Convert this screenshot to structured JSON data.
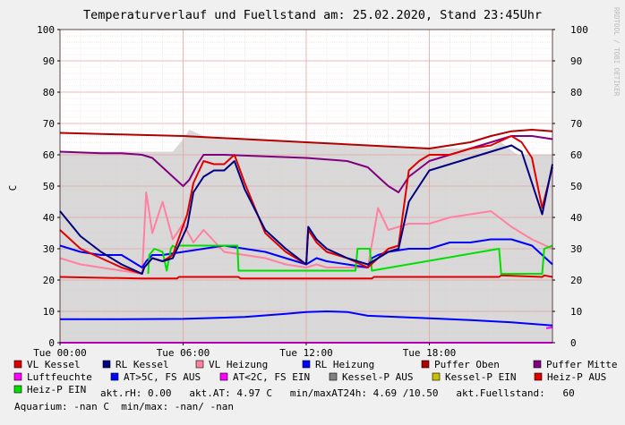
{
  "chart_data": {
    "type": "line",
    "title": "Temperaturverlauf und Fuellstand am: 25.02.2020, Stand 23:45Uhr",
    "ylabel": "C",
    "watermark": "RRDTOOL / TOBI OETIKER",
    "ylim": [
      0,
      100
    ],
    "yticks": [
      "0",
      "10",
      "20",
      "30",
      "40",
      "50",
      "60",
      "70",
      "80",
      "90",
      "100"
    ],
    "xlim": [
      0,
      24
    ],
    "xticks": [
      {
        "label": "Tue 00:00",
        "hour": 0
      },
      {
        "label": "Tue 06:00",
        "hour": 6
      },
      {
        "label": "Tue 12:00",
        "hour": 12
      },
      {
        "label": "Tue 18:00",
        "hour": 18
      }
    ],
    "grid": true,
    "legend_position": "bottom",
    "fuellstand_area": {
      "color": "#d8d8d8",
      "x": [
        0,
        5.5,
        6,
        6.3,
        7,
        8,
        9,
        12,
        14,
        16,
        17,
        18,
        21,
        21.5,
        22.3,
        23,
        24
      ],
      "values": [
        61,
        61,
        65,
        68,
        66,
        65,
        65,
        64,
        63,
        63,
        62,
        62,
        62,
        64,
        60,
        60,
        60
      ]
    },
    "series": [
      {
        "name": "VL Kessel",
        "color": "#e00000",
        "x": [
          0,
          1,
          2,
          3,
          4,
          4.1,
          4.5,
          5,
          5.5,
          6.2,
          6.5,
          7,
          7.5,
          8,
          8.5,
          9,
          10,
          11,
          12,
          12.1,
          12.5,
          13,
          14,
          15,
          15.5,
          16,
          16.5,
          17,
          17.5,
          18,
          19,
          20,
          21,
          22,
          22.5,
          23,
          23.5,
          24
        ],
        "values": [
          36,
          30,
          27,
          24,
          22,
          24,
          27,
          26,
          28,
          41,
          51,
          58,
          57,
          57,
          60,
          51,
          35,
          29,
          25,
          36,
          32,
          29,
          27,
          24,
          27,
          30,
          31,
          55,
          58,
          60,
          60,
          62,
          63,
          66,
          64,
          59,
          43,
          56
        ]
      },
      {
        "name": "RL Kessel",
        "color": "#000080",
        "x": [
          0,
          1,
          2,
          3,
          4,
          4.1,
          4.5,
          5,
          5.5,
          6.2,
          6.5,
          7,
          7.5,
          8,
          8.5,
          9,
          10,
          11,
          12,
          12.1,
          12.5,
          13,
          14,
          15,
          15.5,
          16,
          16.5,
          17,
          17.5,
          18,
          19,
          20,
          21,
          22,
          22.5,
          23,
          23.5,
          24
        ],
        "values": [
          42,
          34,
          29,
          25,
          22,
          24,
          27,
          26,
          27,
          37,
          48,
          53,
          55,
          55,
          58,
          49,
          36,
          30,
          25,
          37,
          33,
          30,
          27,
          25,
          27,
          29,
          30,
          45,
          50,
          55,
          57,
          59,
          61,
          63,
          61,
          51,
          41,
          57
        ]
      },
      {
        "name": "VL Heizung",
        "color": "#ff80a0",
        "x": [
          0,
          1,
          2,
          3,
          4,
          4.2,
          4.5,
          5,
          5.5,
          6,
          6.5,
          7,
          8,
          9,
          10,
          11,
          12,
          12.5,
          13,
          14,
          15,
          15.5,
          16,
          17,
          18,
          19,
          20,
          21,
          22,
          23,
          24
        ],
        "values": [
          27,
          25,
          24,
          23,
          22,
          48,
          35,
          45,
          33,
          38,
          32,
          36,
          29,
          28,
          27,
          25,
          24,
          25,
          24,
          24,
          24,
          43,
          36,
          38,
          38,
          40,
          41,
          42,
          37,
          33,
          30
        ]
      },
      {
        "name": "RL Heizung",
        "color": "#0000ff",
        "x": [
          0,
          1,
          2,
          3,
          4,
          4.2,
          4.5,
          5,
          6,
          7,
          8,
          9,
          10,
          11,
          12,
          12.5,
          13,
          14,
          15,
          15.2,
          15.5,
          16,
          17,
          18,
          19,
          20,
          21,
          22,
          23,
          24
        ],
        "values": [
          31,
          29,
          28,
          28,
          24,
          26,
          28,
          28,
          29,
          30,
          31,
          30,
          29,
          27,
          25,
          27,
          26,
          25,
          24,
          27,
          28,
          29,
          30,
          30,
          32,
          32,
          33,
          33,
          31,
          25
        ]
      },
      {
        "name": "Puffer Oben",
        "color": "#b00000",
        "x": [
          0,
          3,
          6,
          9,
          12,
          15,
          18,
          19,
          20,
          21,
          22,
          23,
          24
        ],
        "values": [
          67,
          66.5,
          66,
          65,
          64,
          63,
          62,
          63,
          64,
          66,
          67.5,
          68,
          67.5
        ]
      },
      {
        "name": "Puffer Mitte",
        "color": "#800080",
        "x": [
          0,
          2,
          3,
          4,
          4.5,
          5,
          5.5,
          6,
          6.3,
          6.7,
          7,
          8,
          10,
          12,
          14,
          15,
          15.5,
          16,
          16.5,
          17,
          18,
          19,
          20,
          21,
          22,
          23,
          24
        ],
        "values": [
          61,
          60.5,
          60.5,
          60,
          59,
          56,
          53,
          50,
          52,
          57,
          60,
          60,
          59.5,
          59,
          58,
          56,
          53,
          50,
          48,
          53,
          58,
          60,
          62,
          64,
          66,
          66,
          65
        ]
      },
      {
        "name": "Luftfeuchte",
        "color": "#ff00ff",
        "x": [
          0,
          24
        ],
        "values": [
          0,
          0
        ]
      },
      {
        "name": "AT>5C, FS AUS",
        "color": "#0000ff",
        "x": [
          0,
          3,
          6,
          9,
          11,
          12,
          13,
          14,
          15,
          18,
          20,
          22,
          23,
          24
        ],
        "values": [
          7.5,
          7.5,
          7.6,
          8.2,
          9.2,
          9.8,
          10,
          9.8,
          8.6,
          7.8,
          7.2,
          6.5,
          6,
          5.5
        ]
      },
      {
        "name": "AT<2C, FS EIN",
        "color": "#ff00ff",
        "x": [
          23.7,
          24
        ],
        "values": [
          4.6,
          4.9
        ]
      },
      {
        "name": "Kessel-P AUS",
        "color": "#808080",
        "x": [],
        "values": []
      },
      {
        "name": "Kessel-P EIN",
        "color": "#c8c000",
        "x": [],
        "values": []
      },
      {
        "name": "Heiz-P AUS",
        "color": "#e00000",
        "x": [
          0,
          4,
          4.1,
          5.7,
          5.8,
          8.7,
          8.8,
          14.3,
          14.4,
          15.2,
          15.3,
          21.4,
          21.5,
          23.5,
          23.6,
          24
        ],
        "values": [
          21,
          20.5,
          20.5,
          20.5,
          21,
          21,
          20.5,
          20.5,
          20.5,
          20.5,
          21,
          21,
          21.5,
          21,
          21.5,
          21
        ]
      },
      {
        "name": "Heiz-P EIN",
        "color": "#00e000",
        "x": [
          4.3,
          4.35,
          4.6,
          5,
          5.2,
          5.4,
          5.5,
          5.7,
          5.8,
          8.65,
          8.7,
          14.4,
          14.5,
          15.1,
          15.2,
          21.4,
          21.5,
          23.5,
          23.6,
          24
        ],
        "values": [
          22,
          28,
          30,
          29,
          23,
          30,
          31,
          30,
          31,
          31,
          23,
          23,
          30,
          30,
          23,
          30,
          22,
          22,
          30,
          31
        ]
      }
    ],
    "legend": [
      {
        "label": "VL Kessel",
        "color": "#e00000"
      },
      {
        "label": "RL Kessel",
        "color": "#000080"
      },
      {
        "label": "VL Heizung",
        "color": "#ff80a0"
      },
      {
        "label": "RL Heizung",
        "color": "#0000ff"
      },
      {
        "label": "Puffer Oben",
        "color": "#b00000"
      },
      {
        "label": "Puffer Mitte",
        "color": "#800080"
      },
      {
        "label": "Luftfeuchte",
        "color": "#ff00ff"
      },
      {
        "label": "AT>5C, FS AUS",
        "color": "#0000ff"
      },
      {
        "label": "AT<2C, FS EIN",
        "color": "#ff00ff"
      },
      {
        "label": "Kessel-P AUS",
        "color": "#808080"
      },
      {
        "label": "Kessel-P EIN",
        "color": "#c8c000"
      },
      {
        "label": "Heiz-P AUS",
        "color": "#e00000"
      },
      {
        "label": "Heiz-P EIN",
        "color": "#00e000"
      }
    ],
    "status_line_1": "akt.rH: 0.00   akt.AT: 4.97 C   min/maxAT24h: 4.69 /10.50   akt.Fuellstand:   60",
    "status_line_2": "Aquarium: -nan C  min/max: -nan/ -nan"
  }
}
